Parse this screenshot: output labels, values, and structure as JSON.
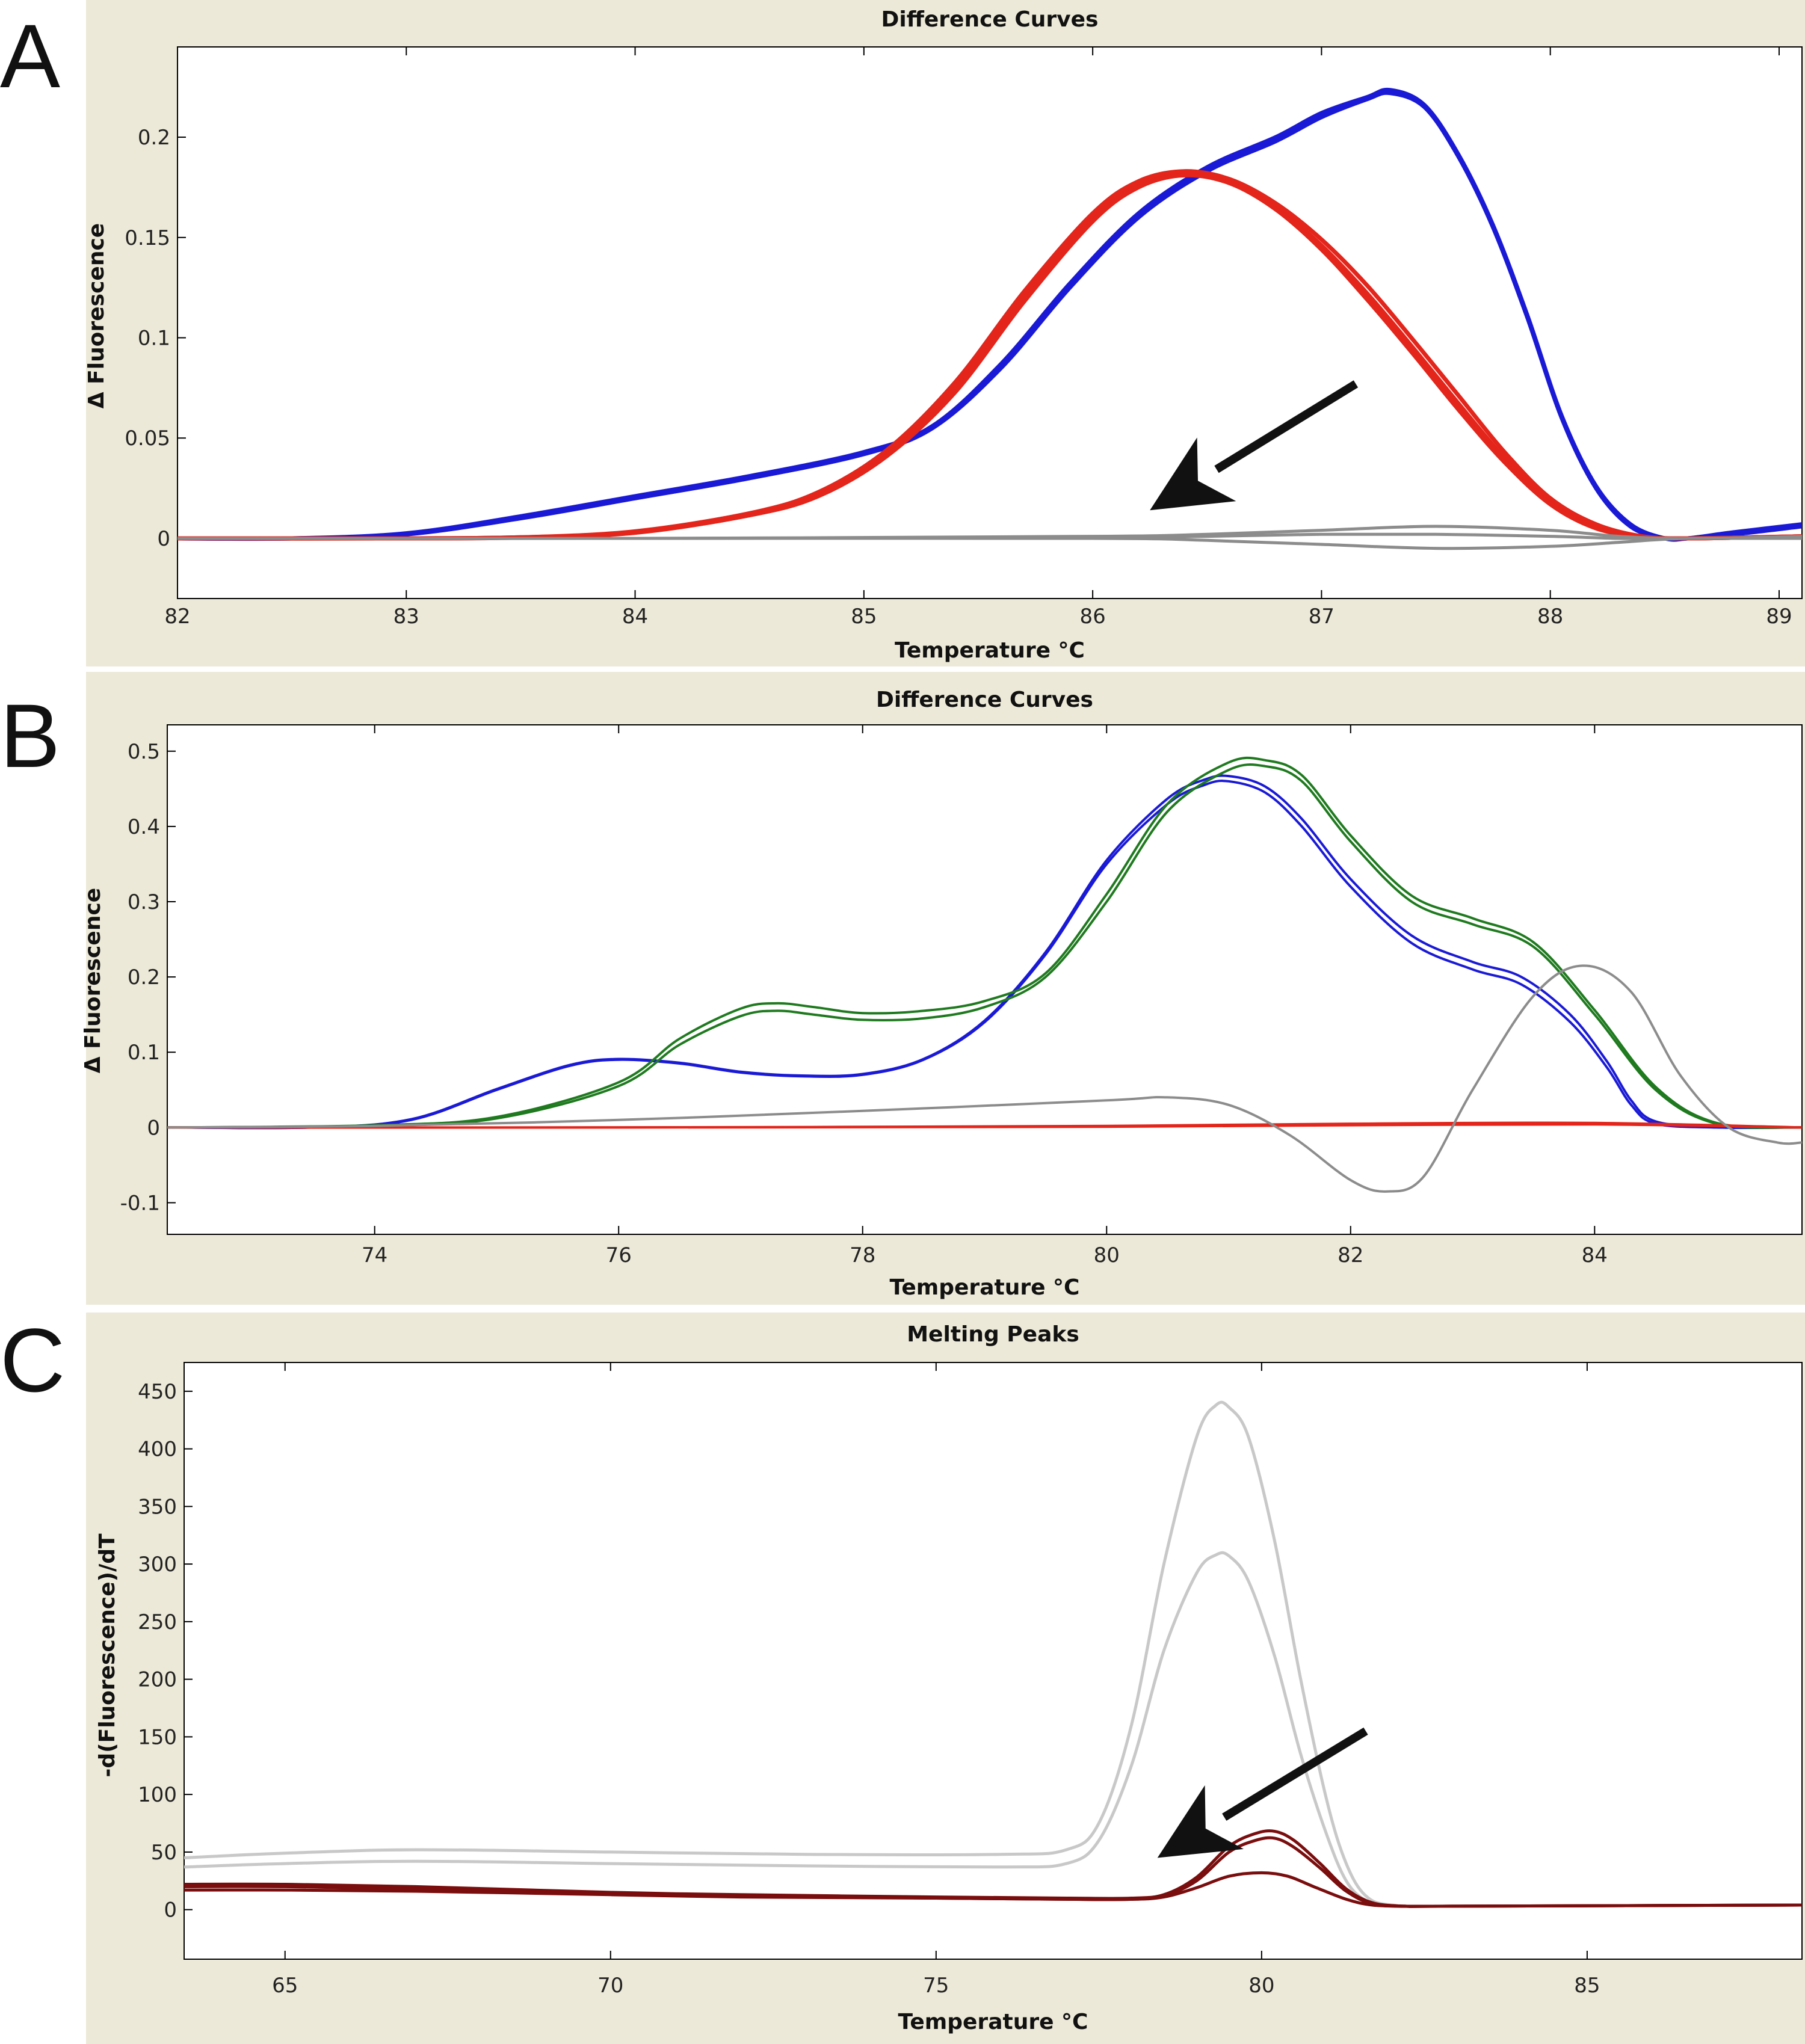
{
  "panels": [
    {
      "letter": "A"
    },
    {
      "letter": "B"
    },
    {
      "letter": "C"
    }
  ],
  "chart_data": [
    {
      "type": "line",
      "title": "Difference Curves",
      "xlabel": "Temperature °C",
      "ylabel": "Δ Fluorescence",
      "xlim": [
        82,
        89.1
      ],
      "ylim": [
        -0.03,
        0.245
      ],
      "xticks": [
        82,
        83,
        84,
        85,
        86,
        87,
        88,
        89
      ],
      "yticks": [
        0,
        0.05,
        0.1,
        0.15,
        0.2
      ],
      "ytick_labels": [
        "0",
        "0.05",
        "0.1",
        "0.15",
        "0.2"
      ],
      "annotations": [
        {
          "type": "arrow",
          "from": [
            87.15,
            0.077
          ],
          "to": [
            86.25,
            0.014
          ]
        }
      ],
      "series": [
        {
          "name": "blue-1",
          "color": "#1a1ad6",
          "x": [
            82,
            82.5,
            83,
            83.5,
            84,
            84.5,
            85,
            85.3,
            85.6,
            85.9,
            86.2,
            86.5,
            86.8,
            87.0,
            87.2,
            87.3,
            87.45,
            87.6,
            87.75,
            87.9,
            88.05,
            88.2,
            88.35,
            88.5,
            88.6,
            88.8,
            89.1
          ],
          "y": [
            0,
            0,
            0.002,
            0.01,
            0.02,
            0.03,
            0.042,
            0.055,
            0.085,
            0.125,
            0.16,
            0.183,
            0.198,
            0.21,
            0.219,
            0.222,
            0.215,
            0.19,
            0.155,
            0.11,
            0.06,
            0.025,
            0.006,
            0,
            0,
            0.002,
            0.006
          ]
        },
        {
          "name": "blue-2",
          "color": "#1a1ad6",
          "x": [
            82,
            82.5,
            83,
            83.5,
            84,
            84.5,
            85,
            85.3,
            85.6,
            85.9,
            86.2,
            86.5,
            86.8,
            87.0,
            87.2,
            87.3,
            87.45,
            87.6,
            87.75,
            87.9,
            88.05,
            88.2,
            88.35,
            88.5,
            88.6,
            88.8,
            89.1
          ],
          "y": [
            0,
            0,
            0.0025,
            0.011,
            0.021,
            0.031,
            0.043,
            0.056,
            0.087,
            0.127,
            0.162,
            0.185,
            0.2,
            0.212,
            0.22,
            0.2235,
            0.216,
            0.191,
            0.156,
            0.111,
            0.061,
            0.026,
            0.007,
            0,
            0,
            0.003,
            0.007
          ]
        },
        {
          "name": "red-1",
          "color": "#e3251b",
          "x": [
            82,
            83,
            83.5,
            84,
            84.5,
            84.8,
            85.1,
            85.4,
            85.7,
            86.0,
            86.2,
            86.4,
            86.6,
            86.8,
            87.0,
            87.2,
            87.4,
            87.6,
            87.8,
            88.0,
            88.2,
            88.4,
            88.6,
            89.1
          ],
          "y": [
            0,
            0,
            0.0005,
            0.003,
            0.012,
            0.022,
            0.042,
            0.075,
            0.12,
            0.16,
            0.177,
            0.182,
            0.178,
            0.165,
            0.146,
            0.122,
            0.095,
            0.067,
            0.04,
            0.018,
            0.006,
            0.001,
            0,
            0.001
          ]
        },
        {
          "name": "red-2",
          "color": "#e3251b",
          "x": [
            82,
            83,
            83.5,
            84,
            84.5,
            84.8,
            85.1,
            85.4,
            85.7,
            86.0,
            86.2,
            86.4,
            86.6,
            86.8,
            87.0,
            87.2,
            87.4,
            87.6,
            87.8,
            88.0,
            88.2,
            88.4,
            88.6,
            89.1
          ],
          "y": [
            0,
            0,
            0.0005,
            0.0035,
            0.0125,
            0.023,
            0.044,
            0.078,
            0.123,
            0.162,
            0.178,
            0.183,
            0.179,
            0.167,
            0.149,
            0.126,
            0.099,
            0.071,
            0.043,
            0.02,
            0.007,
            0.001,
            0,
            0.001
          ]
        },
        {
          "name": "red-3",
          "color": "#e3251b",
          "x": [
            82,
            83,
            83.5,
            84,
            84.5,
            84.8,
            85.1,
            85.4,
            85.7,
            86.0,
            86.2,
            86.4,
            86.6,
            86.8,
            87.0,
            87.2,
            87.4,
            87.6,
            87.8,
            88.0,
            88.2,
            88.4,
            88.6,
            89.1
          ],
          "y": [
            0,
            0,
            0.0004,
            0.0028,
            0.0115,
            0.021,
            0.041,
            0.073,
            0.118,
            0.158,
            0.175,
            0.181,
            0.177,
            0.164,
            0.144,
            0.119,
            0.092,
            0.064,
            0.038,
            0.017,
            0.005,
            0.0008,
            0,
            0.001
          ]
        },
        {
          "name": "grey-1",
          "color": "#8c8c8c",
          "x": [
            82,
            84,
            86,
            86.5,
            87,
            87.5,
            88,
            88.3,
            88.6,
            89.1
          ],
          "y": [
            0,
            0,
            0.001,
            0.002,
            0.004,
            0.006,
            0.004,
            0.001,
            0,
            0.001
          ]
        },
        {
          "name": "grey-2",
          "color": "#8c8c8c",
          "x": [
            82,
            84,
            86,
            86.5,
            87,
            87.5,
            88,
            88.3,
            88.6,
            89.1
          ],
          "y": [
            0,
            0,
            0,
            -0.001,
            -0.003,
            -0.005,
            -0.004,
            -0.002,
            0,
            0
          ]
        },
        {
          "name": "grey-3",
          "color": "#8c8c8c",
          "x": [
            82,
            84,
            86,
            86.5,
            87,
            87.5,
            88,
            88.3,
            88.6,
            89.1
          ],
          "y": [
            0,
            0,
            0.0005,
            0.001,
            0.002,
            0.002,
            0.001,
            0,
            0,
            0
          ]
        }
      ]
    },
    {
      "type": "line",
      "title": "Difference Curves",
      "xlabel": "Temperature °C",
      "ylabel": "Δ Fluorescence",
      "xlim": [
        72.3,
        85.7
      ],
      "ylim": [
        -0.142,
        0.535
      ],
      "xticks": [
        74,
        76,
        78,
        80,
        82,
        84
      ],
      "yticks": [
        -0.1,
        0,
        0.1,
        0.2,
        0.3,
        0.4,
        0.5
      ],
      "ytick_labels": [
        "-0.1",
        "0",
        "0.1",
        "0.2",
        "0.3",
        "0.4",
        "0.5"
      ],
      "series": [
        {
          "name": "blue-1",
          "color": "#1a1ad6",
          "x": [
            72.3,
            73.5,
            74.3,
            75.0,
            75.6,
            76.0,
            76.5,
            77.0,
            77.5,
            78.0,
            78.5,
            79.0,
            79.5,
            80.0,
            80.5,
            80.8,
            81.0,
            81.3,
            81.6,
            82.0,
            82.5,
            83.0,
            83.4,
            83.8,
            84.1,
            84.3,
            84.5,
            85.0,
            85.7
          ],
          "y": [
            0,
            0,
            0.01,
            0.05,
            0.082,
            0.09,
            0.085,
            0.073,
            0.068,
            0.07,
            0.09,
            0.14,
            0.23,
            0.35,
            0.43,
            0.455,
            0.46,
            0.445,
            0.4,
            0.32,
            0.245,
            0.21,
            0.19,
            0.14,
            0.08,
            0.03,
            0.005,
            0,
            0
          ]
        },
        {
          "name": "blue-2",
          "color": "#1a1ad6",
          "x": [
            72.3,
            73.5,
            74.3,
            75.0,
            75.6,
            76.0,
            76.5,
            77.0,
            77.5,
            78.0,
            78.5,
            79.0,
            79.5,
            80.0,
            80.5,
            80.8,
            81.0,
            81.3,
            81.6,
            82.0,
            82.5,
            83.0,
            83.4,
            83.8,
            84.1,
            84.3,
            84.5,
            85.0,
            85.7
          ],
          "y": [
            0,
            0,
            0.011,
            0.051,
            0.083,
            0.091,
            0.086,
            0.074,
            0.069,
            0.071,
            0.091,
            0.142,
            0.233,
            0.355,
            0.437,
            0.462,
            0.467,
            0.453,
            0.41,
            0.33,
            0.255,
            0.22,
            0.2,
            0.15,
            0.088,
            0.036,
            0.008,
            0,
            0
          ]
        },
        {
          "name": "green-1",
          "color": "#1f7a1f",
          "x": [
            72.3,
            74.0,
            75.0,
            76.0,
            76.5,
            77.0,
            77.3,
            77.6,
            78.0,
            78.5,
            79.0,
            79.5,
            80.0,
            80.5,
            81.0,
            81.3,
            81.6,
            82.0,
            82.5,
            83.0,
            83.5,
            84.0,
            84.5,
            85.0,
            85.7
          ],
          "y": [
            0,
            0.002,
            0.012,
            0.055,
            0.11,
            0.148,
            0.155,
            0.15,
            0.143,
            0.145,
            0.16,
            0.2,
            0.3,
            0.42,
            0.475,
            0.48,
            0.46,
            0.38,
            0.3,
            0.27,
            0.24,
            0.15,
            0.05,
            0.005,
            0
          ]
        },
        {
          "name": "green-2",
          "color": "#1f7a1f",
          "x": [
            72.3,
            74.0,
            75.0,
            76.0,
            76.5,
            77.0,
            77.3,
            77.6,
            78.0,
            78.5,
            79.0,
            79.5,
            80.0,
            80.5,
            81.0,
            81.3,
            81.6,
            82.0,
            82.5,
            83.0,
            83.5,
            84.0,
            84.5,
            85.0,
            85.7
          ],
          "y": [
            0,
            0.003,
            0.014,
            0.06,
            0.118,
            0.158,
            0.165,
            0.16,
            0.152,
            0.155,
            0.168,
            0.205,
            0.31,
            0.43,
            0.485,
            0.488,
            0.468,
            0.388,
            0.308,
            0.278,
            0.246,
            0.156,
            0.054,
            0.006,
            0
          ]
        },
        {
          "name": "red-1",
          "color": "#e3251b",
          "x": [
            72.3,
            76,
            80,
            82,
            84,
            85.7
          ],
          "y": [
            0,
            0,
            0.002,
            0.005,
            0.006,
            0
          ]
        },
        {
          "name": "red-2",
          "color": "#e3251b",
          "x": [
            72.3,
            76,
            80,
            82,
            84,
            85.7
          ],
          "y": [
            0,
            0,
            0.001,
            0.003,
            0.004,
            0
          ]
        },
        {
          "name": "grey-1",
          "color": "#8c8c8c",
          "x": [
            72.3,
            74,
            76,
            78,
            80,
            80.5,
            81.0,
            81.5,
            82.0,
            82.3,
            82.6,
            83.0,
            83.5,
            83.9,
            84.3,
            84.7,
            85.1,
            85.5,
            85.7
          ],
          "y": [
            0,
            0.002,
            0.01,
            0.022,
            0.036,
            0.04,
            0.03,
            -0.01,
            -0.07,
            -0.085,
            -0.065,
            0.05,
            0.175,
            0.215,
            0.18,
            0.07,
            0,
            -0.02,
            -0.02
          ]
        }
      ]
    },
    {
      "type": "line",
      "title": "Melting Peaks",
      "xlabel": "Temperature °C",
      "ylabel": "-d(Fluorescence)/dT",
      "xlim": [
        63.45,
        88.3
      ],
      "ylim": [
        -43,
        475
      ],
      "xticks": [
        65,
        70,
        75,
        80,
        85
      ],
      "yticks": [
        0,
        50,
        100,
        150,
        200,
        250,
        300,
        350,
        400,
        450
      ],
      "ytick_labels": [
        "0",
        "50",
        "100",
        "150",
        "200",
        "250",
        "300",
        "350",
        "400",
        "450"
      ],
      "annotations": [
        {
          "type": "arrow",
          "from": [
            81.6,
            155
          ],
          "to": [
            78.4,
            45
          ]
        }
      ],
      "series": [
        {
          "name": "lightgrey-1",
          "color": "#c8c8c8",
          "x": [
            63.45,
            65,
            67,
            70,
            73,
            76,
            77,
            77.5,
            78,
            78.5,
            79,
            79.3,
            79.5,
            79.8,
            80.2,
            80.6,
            81.0,
            81.3,
            81.6,
            82,
            83,
            88.3
          ],
          "y": [
            45,
            49,
            52,
            50,
            48,
            48,
            52,
            75,
            160,
            300,
            410,
            438,
            436,
            410,
            320,
            200,
            95,
            40,
            12,
            4,
            3,
            4
          ]
        },
        {
          "name": "lightgrey-2",
          "color": "#c8c8c8",
          "x": [
            63.45,
            65,
            67,
            70,
            73,
            76,
            77,
            77.5,
            78,
            78.5,
            79,
            79.3,
            79.5,
            79.8,
            80.2,
            80.6,
            81.0,
            81.3,
            81.6,
            82,
            83,
            88.3
          ],
          "y": [
            37,
            40,
            42,
            40,
            38,
            37,
            40,
            60,
            125,
            225,
            292,
            308,
            307,
            285,
            220,
            135,
            65,
            25,
            8,
            3,
            3,
            4
          ]
        },
        {
          "name": "darkred-1",
          "color": "#7a0d0d",
          "x": [
            63.45,
            65,
            67,
            70,
            72,
            75,
            77,
            78,
            78.5,
            79,
            79.5,
            79.9,
            80.2,
            80.5,
            80.9,
            81.3,
            81.7,
            82.2,
            83,
            88.3
          ],
          "y": [
            22,
            22,
            20,
            15,
            13,
            11,
            10,
            10,
            13,
            28,
            55,
            66,
            68,
            60,
            40,
            18,
            6,
            3,
            3,
            4
          ]
        },
        {
          "name": "darkred-2",
          "color": "#7a0d0d",
          "x": [
            63.45,
            65,
            67,
            70,
            72,
            75,
            77,
            78,
            78.5,
            79,
            79.5,
            80.0,
            80.4,
            80.8,
            81.3,
            81.7,
            82.2,
            83,
            88.3
          ],
          "y": [
            17,
            17,
            16,
            13,
            11,
            10,
            9,
            9,
            11,
            19,
            29,
            32,
            29,
            20,
            9,
            4,
            3,
            3,
            4
          ]
        },
        {
          "name": "darkred-3",
          "color": "#7a0d0d",
          "x": [
            63.45,
            65,
            67,
            70,
            72,
            75,
            77,
            78,
            78.5,
            79,
            79.5,
            79.9,
            80.2,
            80.5,
            80.9,
            81.3,
            81.7,
            82.2,
            83,
            88.3
          ],
          "y": [
            20,
            20,
            18,
            14,
            12,
            10,
            9,
            9,
            12,
            25,
            50,
            60,
            62,
            54,
            36,
            16,
            5,
            3,
            3,
            4
          ]
        }
      ]
    }
  ]
}
